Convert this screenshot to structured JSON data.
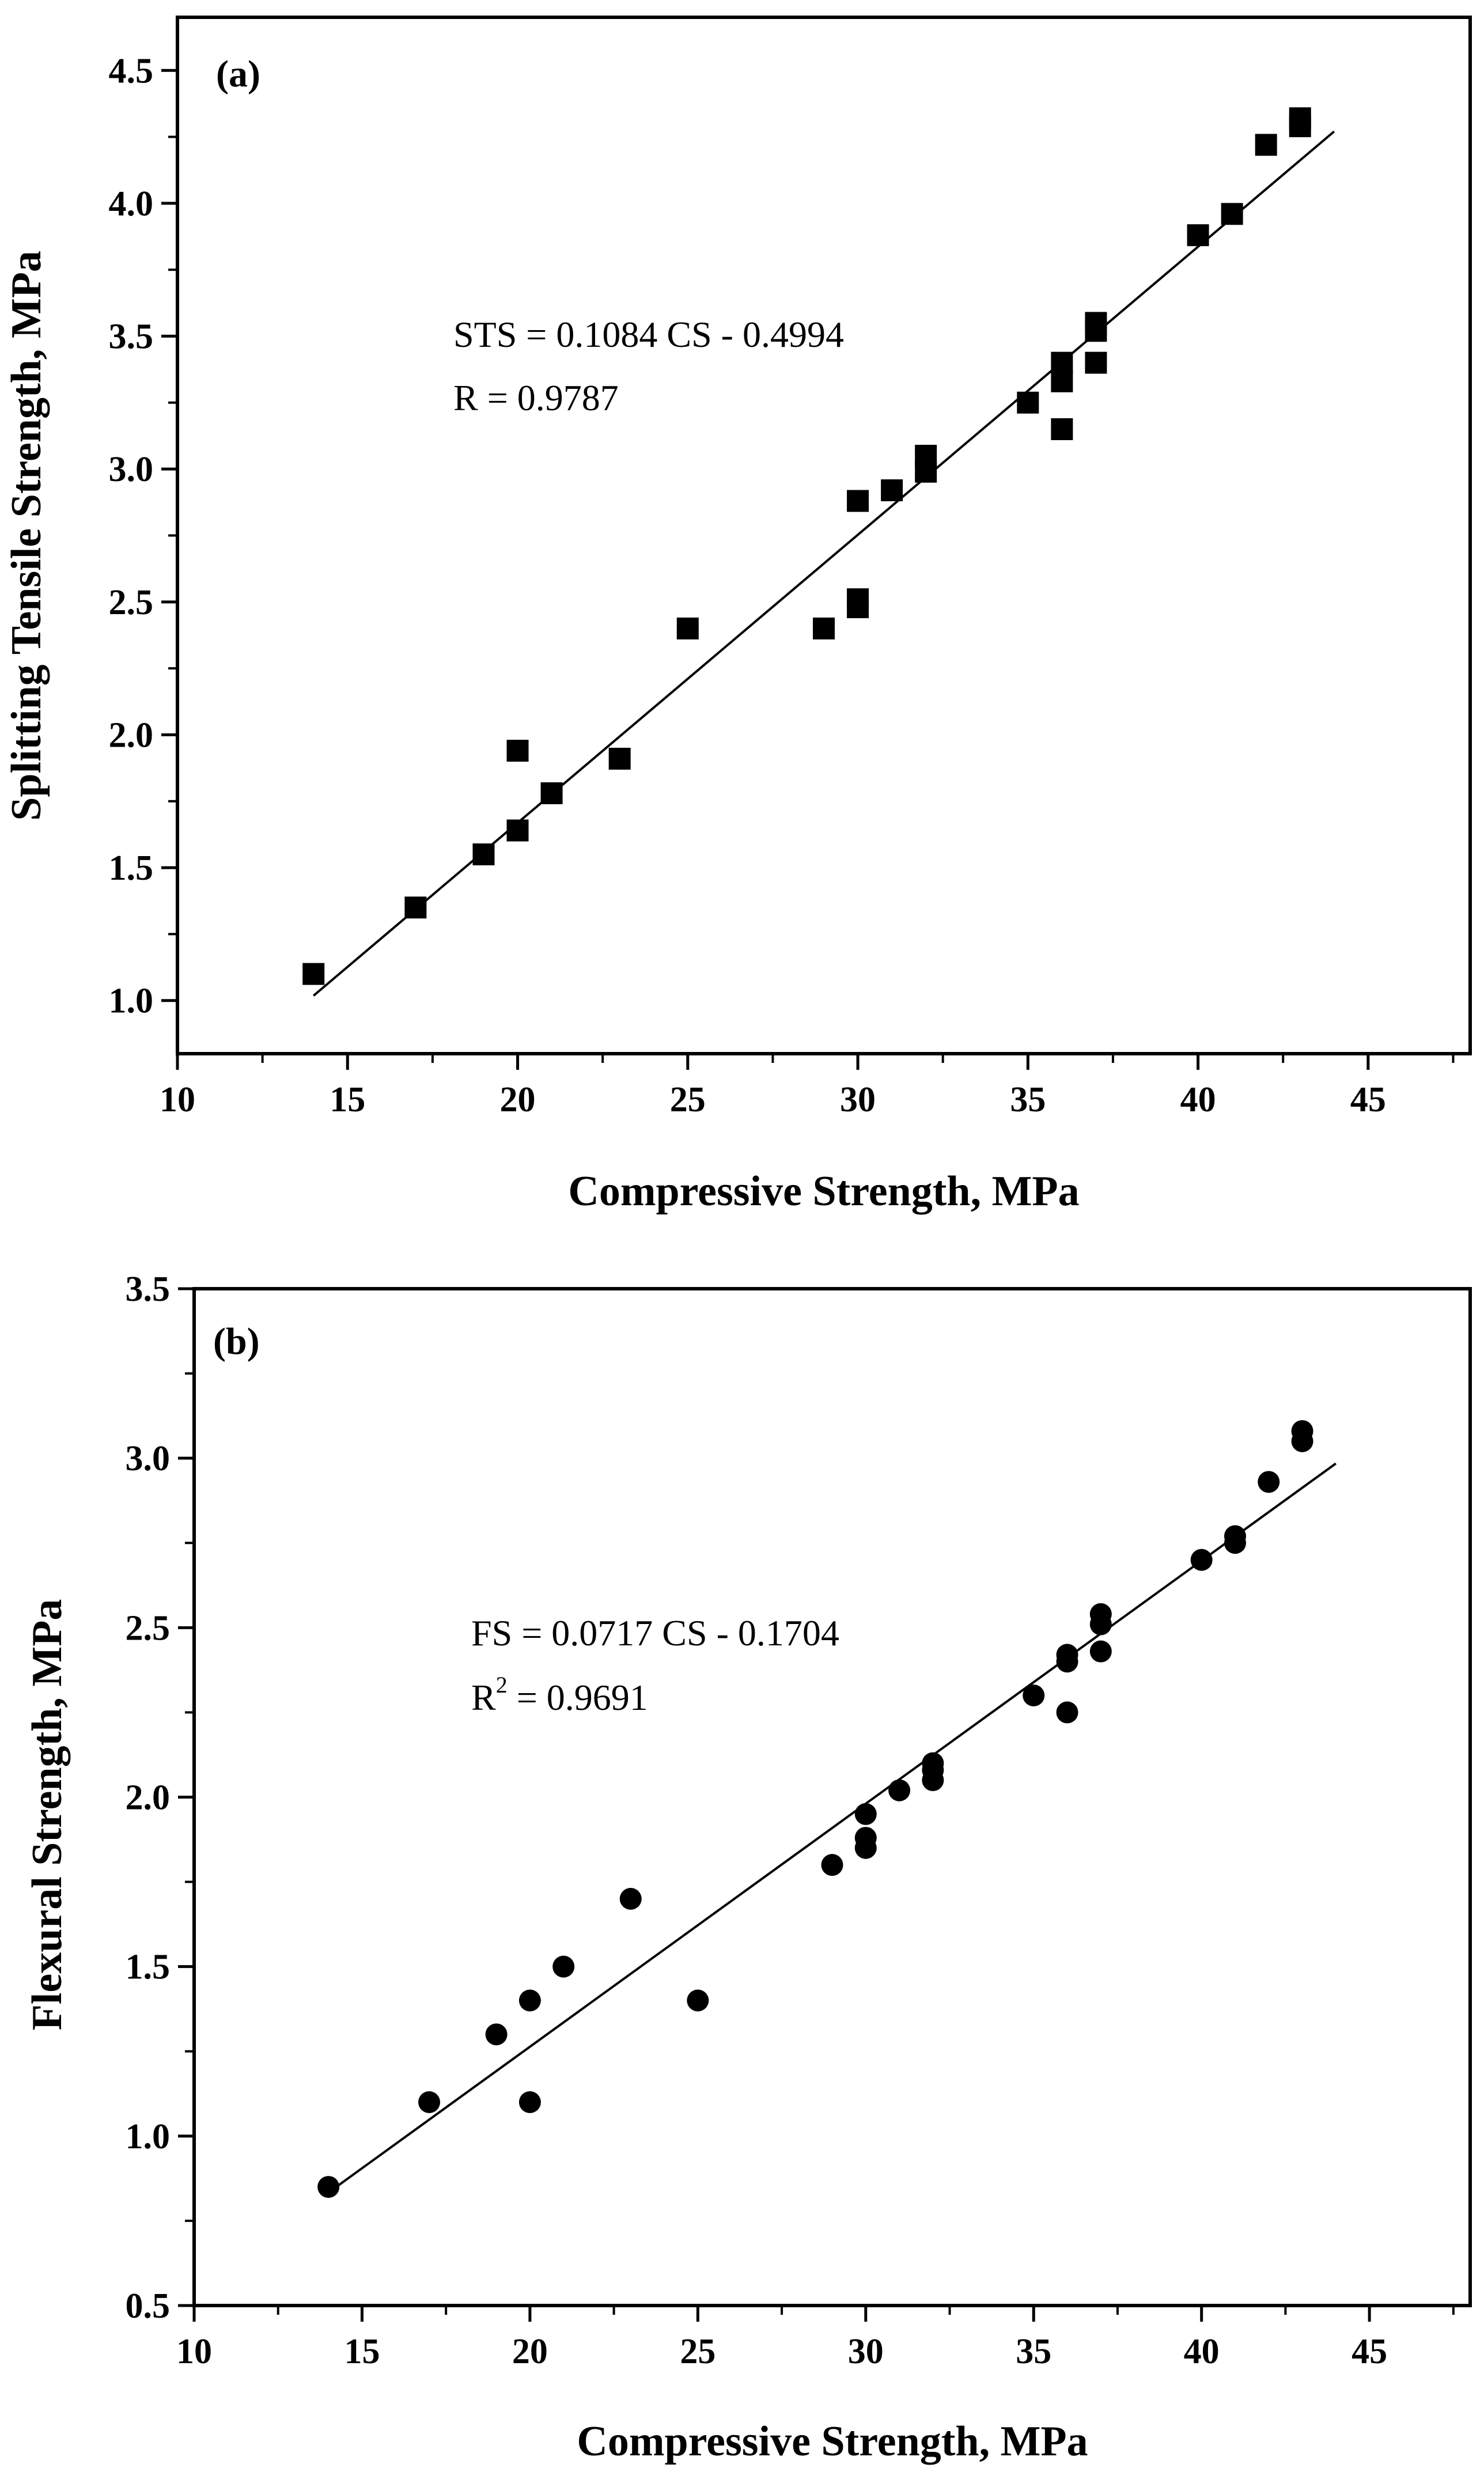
{
  "chart_data": [
    {
      "type": "scatter",
      "panel_label": "(a)",
      "xlabel": "Compressive Strength, MPa",
      "ylabel": "Splitting Tensile Strength, MPa",
      "xlim": [
        10,
        48
      ],
      "ylim": [
        0.8,
        4.7
      ],
      "xticks": [
        10,
        15,
        20,
        25,
        30,
        35,
        40,
        45
      ],
      "yticks": [
        1.0,
        1.5,
        2.0,
        2.5,
        3.0,
        3.5,
        4.0,
        4.5
      ],
      "ytick_labels": [
        "1.0",
        "1.5",
        "2.0",
        "2.5",
        "3.0",
        "3.5",
        "4.0",
        "4.5"
      ],
      "marker": "square",
      "points": [
        [
          14,
          1.1
        ],
        [
          17,
          1.35
        ],
        [
          19,
          1.55
        ],
        [
          20,
          1.64
        ],
        [
          20,
          1.94
        ],
        [
          21,
          1.78
        ],
        [
          23,
          1.91
        ],
        [
          25,
          2.4
        ],
        [
          29,
          2.4
        ],
        [
          30,
          2.48
        ],
        [
          30,
          2.51
        ],
        [
          30,
          2.88
        ],
        [
          31,
          2.92
        ],
        [
          32,
          2.99
        ],
        [
          32,
          3.05
        ],
        [
          35,
          3.25
        ],
        [
          36,
          3.15
        ],
        [
          36,
          3.33
        ],
        [
          36,
          3.4
        ],
        [
          37,
          3.4
        ],
        [
          37,
          3.52
        ],
        [
          37,
          3.55
        ],
        [
          40,
          3.88
        ],
        [
          41,
          3.96
        ],
        [
          42,
          4.22
        ],
        [
          43,
          4.29
        ],
        [
          43,
          4.32
        ]
      ],
      "fit": {
        "slope": 0.1084,
        "intercept": -0.4994,
        "x_range": [
          14,
          44
        ]
      },
      "annotations": [
        "STS = 0.1084 CS - 0.4994",
        "R = 0.9787"
      ]
    },
    {
      "type": "scatter",
      "panel_label": "(b)",
      "xlabel": "Compressive Strength, MPa",
      "ylabel": "Flexural Strength, MPa",
      "xlim": [
        10,
        48
      ],
      "ylim": [
        0.5,
        3.5
      ],
      "xticks": [
        10,
        15,
        20,
        25,
        30,
        35,
        40,
        45
      ],
      "yticks": [
        0.5,
        1.0,
        1.5,
        2.0,
        2.5,
        3.0,
        3.5
      ],
      "ytick_labels": [
        "0.5",
        "1.0",
        "1.5",
        "2.0",
        "2.5",
        "3.0",
        "3.5"
      ],
      "marker": "circle",
      "points": [
        [
          14,
          0.85
        ],
        [
          17,
          1.1
        ],
        [
          19,
          1.3
        ],
        [
          20,
          1.1
        ],
        [
          20,
          1.4
        ],
        [
          21,
          1.5
        ],
        [
          23,
          1.7
        ],
        [
          25,
          1.4
        ],
        [
          29,
          1.8
        ],
        [
          30,
          1.85
        ],
        [
          30,
          1.88
        ],
        [
          30,
          1.95
        ],
        [
          31,
          2.02
        ],
        [
          32,
          2.05
        ],
        [
          32,
          2.08
        ],
        [
          32,
          2.1
        ],
        [
          35,
          2.3
        ],
        [
          36,
          2.25
        ],
        [
          36,
          2.4
        ],
        [
          36,
          2.42
        ],
        [
          37,
          2.43
        ],
        [
          37,
          2.51
        ],
        [
          37,
          2.54
        ],
        [
          40,
          2.7
        ],
        [
          41,
          2.75
        ],
        [
          41,
          2.77
        ],
        [
          42,
          2.93
        ],
        [
          43,
          3.05
        ],
        [
          43,
          3.08
        ]
      ],
      "fit": {
        "slope": 0.0717,
        "intercept": -0.1704,
        "x_range": [
          14,
          44
        ]
      },
      "annotations": [
        "FS = 0.0717 CS - 0.1704",
        "R",
        "2",
        " = 0.9691"
      ]
    }
  ]
}
